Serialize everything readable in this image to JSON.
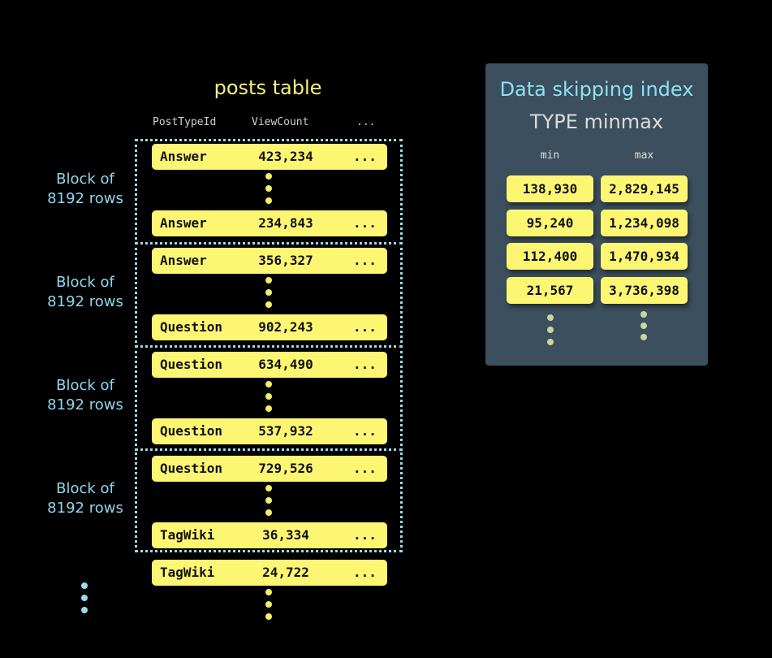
{
  "table": {
    "title": "posts table",
    "columns": [
      "PostTypeId",
      "ViewCount",
      "..."
    ],
    "block_label_line1": "Block of",
    "block_label_line2": "8192 rows",
    "rows": [
      [
        "Answer",
        "423,234",
        "..."
      ],
      [
        "Answer",
        "234,843",
        "..."
      ],
      [
        "Answer",
        "356,327",
        "..."
      ],
      [
        "Question",
        "902,243",
        "..."
      ],
      [
        "Question",
        "634,490",
        "..."
      ],
      [
        "Question",
        "537,932",
        "..."
      ],
      [
        "Question",
        "729,526",
        "..."
      ],
      [
        "TagWiki",
        "36,334",
        "..."
      ],
      [
        "TagWiki",
        "24,722",
        "..."
      ]
    ]
  },
  "index": {
    "title": "Data skipping index",
    "subtitle": "TYPE minmax",
    "columns": [
      "min",
      "max"
    ],
    "rows": [
      [
        "138,930",
        "2,829,145"
      ],
      [
        "95,240",
        "1,234,098"
      ],
      [
        "112,400",
        "1,470,934"
      ],
      [
        "21,567",
        "3,736,398"
      ]
    ]
  },
  "colors": {
    "row": "#fdf673",
    "block_border": "#9ed8e6",
    "panel": "#3c4f5e",
    "title": "#f7f07a",
    "index_title": "#8fe0f0"
  }
}
